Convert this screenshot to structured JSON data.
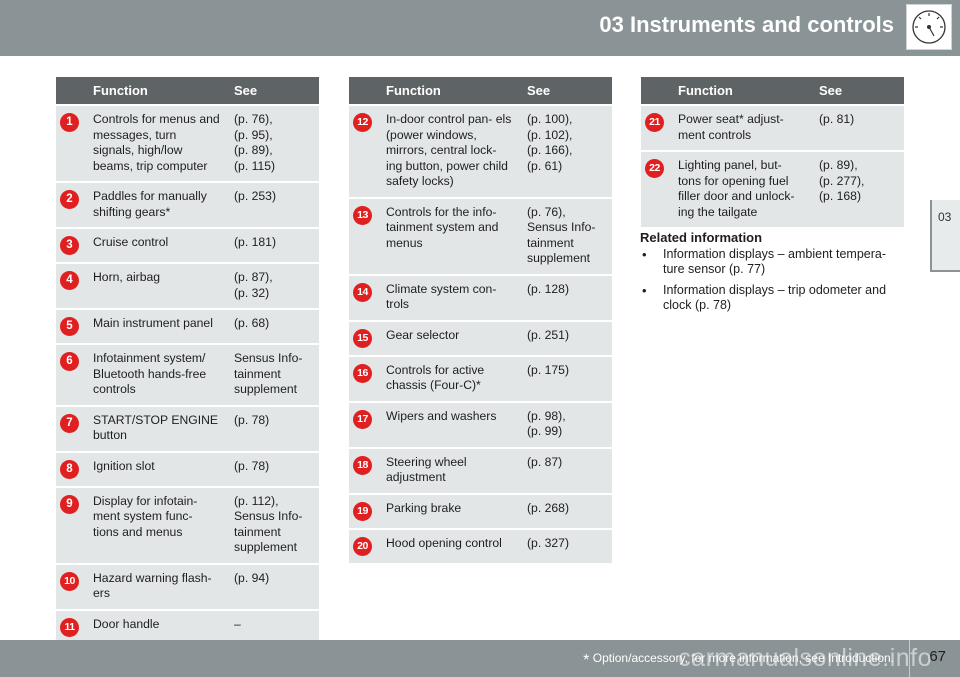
{
  "header": {
    "title": "03 Instruments and controls"
  },
  "chapter_tab": "03",
  "table_headers": {
    "function": "Function",
    "see": "See"
  },
  "table1": [
    {
      "num": "1",
      "function": "Controls for menus and messages, turn signals, high/low beams, trip computer",
      "see": "(p. 76),\n(p. 95),\n(p. 89),\n(p. 115)"
    },
    {
      "num": "2",
      "function": "Paddles for manually shifting gears*",
      "see": "(p. 253)"
    },
    {
      "num": "3",
      "function": "Cruise control",
      "see": "(p. 181)"
    },
    {
      "num": "4",
      "function": "Horn, airbag",
      "see": "(p. 87),\n(p. 32)"
    },
    {
      "num": "5",
      "function": "Main instrument panel",
      "see": "(p. 68)"
    },
    {
      "num": "6",
      "function": "Infotainment system/ Bluetooth hands-free controls",
      "see": "Sensus Info-\ntainment\nsupplement"
    },
    {
      "num": "7",
      "function": "START/STOP ENGINE button",
      "see": "(p. 78)"
    },
    {
      "num": "8",
      "function": "Ignition slot",
      "see": "(p. 78)"
    },
    {
      "num": "9",
      "function": "Display for infotain-\nment system func-\ntions and menus",
      "see": "(p. 112),\nSensus Info-\ntainment\nsupplement"
    },
    {
      "num": "10",
      "function": "Hazard warning flash-\ners",
      "see": "(p. 94)"
    },
    {
      "num": "11",
      "function": "Door handle",
      "see": "–"
    }
  ],
  "table2": [
    {
      "num": "12",
      "function": "In-door control pan-\nels (power windows, mirrors, central lock-\ning button, power child safety locks)",
      "see": "(p. 100),\n(p. 102),\n(p. 166),\n(p. 61)"
    },
    {
      "num": "13",
      "function": "Controls for the info-\ntainment system and menus",
      "see": "(p. 76),\nSensus Info-\ntainment\nsupplement"
    },
    {
      "num": "14",
      "function": "Climate system con-\ntrols",
      "see": "(p. 128)"
    },
    {
      "num": "15",
      "function": "Gear selector",
      "see": "(p. 251)"
    },
    {
      "num": "16",
      "function": "Controls for active chassis (Four-C)*",
      "see": "(p. 175)"
    },
    {
      "num": "17",
      "function": "Wipers and washers",
      "see": "(p. 98),\n(p. 99)"
    },
    {
      "num": "18",
      "function": "Steering wheel adjustment",
      "see": "(p. 87)"
    },
    {
      "num": "19",
      "function": "Parking brake",
      "see": "(p. 268)"
    },
    {
      "num": "20",
      "function": "Hood opening control",
      "see": "(p. 327)"
    }
  ],
  "table3": [
    {
      "num": "21",
      "function": "Power seat* adjust-\nment controls",
      "see": "(p. 81)"
    },
    {
      "num": "22",
      "function": "Lighting panel, but-\ntons for opening fuel filler door and unlock-\ning the tailgate",
      "see": "(p. 89),\n(p. 277),\n(p. 168)"
    }
  ],
  "related": {
    "heading": "Related information",
    "items": [
      "Information displays – ambient tempera-\nture sensor (p. 77)",
      "Information displays – trip odometer and clock (p. 78)"
    ]
  },
  "footer": {
    "footnote_star": "*",
    "footnote": "Option/accessory, for more information, see Introduction.",
    "page": "67",
    "watermark": "carmanualsonline.info"
  },
  "colors": {
    "header": "#8a9395",
    "table_header": "#5e6465",
    "cell": "#e3e6e7",
    "badge": "#e02020"
  }
}
